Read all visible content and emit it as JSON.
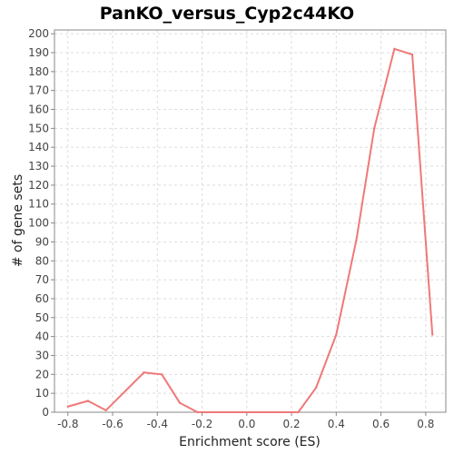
{
  "chart_data": {
    "type": "line",
    "title": "PanKO_versus_Cyp2c44KO",
    "xlabel": "Enrichment score (ES)",
    "ylabel": "# of gene sets",
    "xlim": [
      -0.86,
      0.89
    ],
    "ylim": [
      0,
      202
    ],
    "x_ticks": [
      "-0.8",
      "-0.6",
      "-0.4",
      "-0.2",
      "0.0",
      "0.2",
      "0.4",
      "0.6",
      "0.8"
    ],
    "y_ticks": [
      "0",
      "10",
      "20",
      "30",
      "40",
      "50",
      "60",
      "70",
      "80",
      "90",
      "100",
      "110",
      "120",
      "130",
      "140",
      "150",
      "160",
      "170",
      "180",
      "190",
      "200"
    ],
    "grid": true,
    "series": [
      {
        "color": "#f07878",
        "x": [
          -0.8,
          -0.71,
          -0.63,
          -0.46,
          -0.38,
          -0.3,
          -0.22,
          0.23,
          0.31,
          0.4,
          0.49,
          0.57,
          0.66,
          0.74,
          0.83
        ],
        "y": [
          3,
          6,
          1,
          21,
          20,
          5,
          0,
          0,
          13,
          41,
          91,
          150,
          192,
          189,
          41
        ]
      }
    ]
  }
}
